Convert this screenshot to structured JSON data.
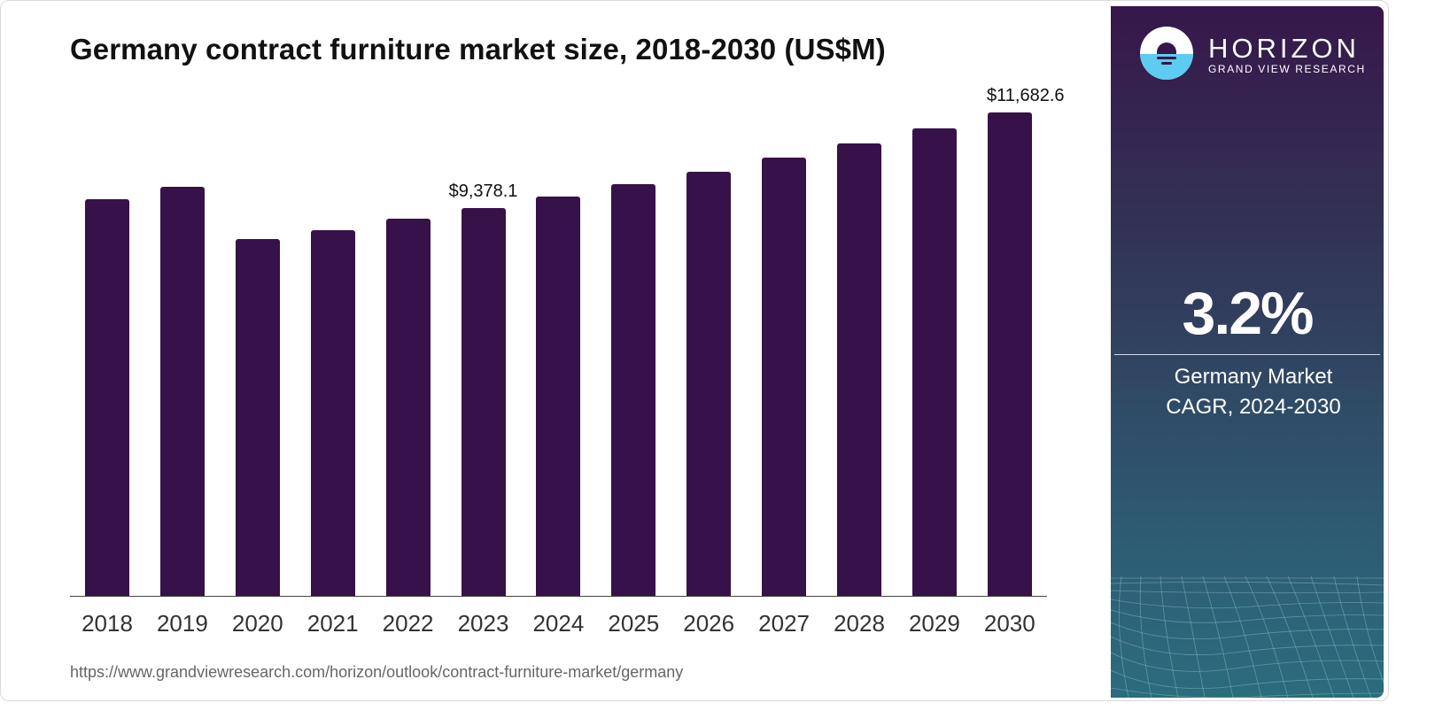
{
  "title": "Germany contract furniture market size, 2018-2030 (US$M)",
  "source_url": "https://www.grandviewresearch.com/horizon/outlook/contract-furniture-market/germany",
  "colors": {
    "bar": "#371149",
    "sidebar_top": "#36174a",
    "sidebar_bottom": "#2b6c7e",
    "logo_accent": "#5ecbf0"
  },
  "sidebar": {
    "brand_name": "HORIZON",
    "brand_sub": "GRAND VIEW RESEARCH",
    "cagr_value": "3.2%",
    "caption_line1": "Germany Market",
    "caption_line2": "CAGR, 2024-2030"
  },
  "chart_data": {
    "type": "bar",
    "title": "Germany contract furniture market size, 2018-2030 (US$M)",
    "xlabel": "",
    "ylabel": "US$M",
    "categories": [
      "2018",
      "2019",
      "2020",
      "2021",
      "2022",
      "2023",
      "2024",
      "2025",
      "2026",
      "2027",
      "2028",
      "2029",
      "2030"
    ],
    "values": [
      9590,
      9890,
      8630,
      8840,
      9120,
      9378.1,
      9655,
      9950,
      10250,
      10590,
      10935,
      11300,
      11682.6
    ],
    "data_labels": [
      {
        "category": "2023",
        "text": "$9,378.1"
      },
      {
        "category": "2030",
        "text": "$11,682.6"
      }
    ],
    "ylim": [
      0,
      11682.6
    ],
    "grid": false,
    "legend": "none",
    "y_axis_visible": false
  }
}
